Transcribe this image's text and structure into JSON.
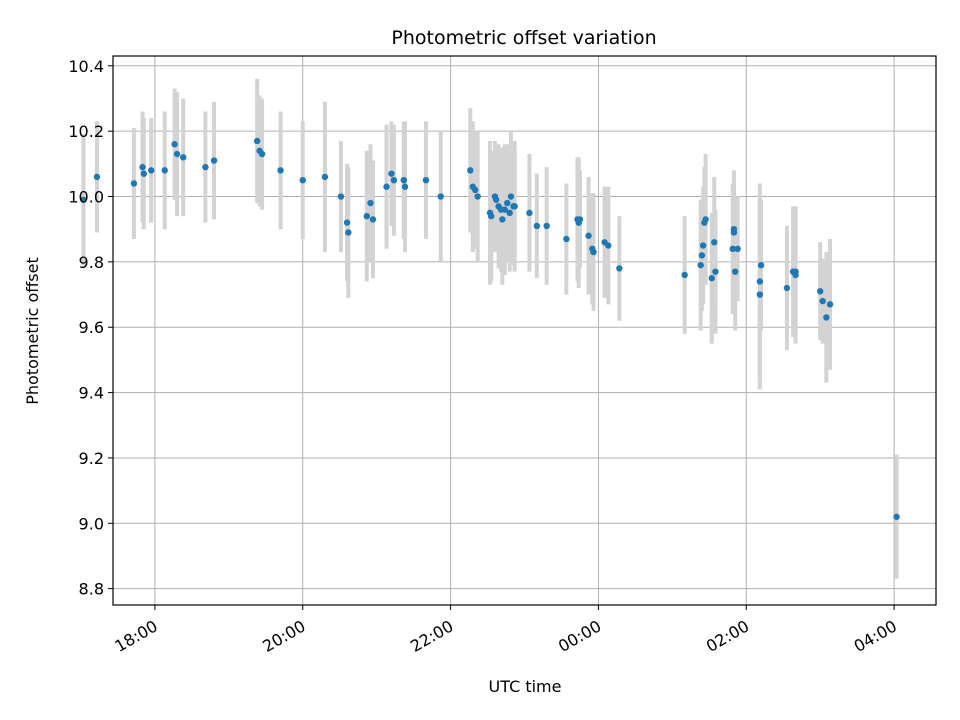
{
  "chart_data": {
    "type": "scatter",
    "title": "Photometric offset variation",
    "xlabel": "UTC time",
    "ylabel": "Photometric offset",
    "grid": true,
    "xlim": [
      "17:26",
      "04:34"
    ],
    "ylim": [
      8.75,
      10.43
    ],
    "xticks": [
      "18:00",
      "20:00",
      "22:00",
      "00:00",
      "02:00",
      "04:00"
    ],
    "yticks": [
      "8.8",
      "9.0",
      "9.2",
      "9.4",
      "9.6",
      "9.8",
      "10.0",
      "10.2",
      "10.4"
    ],
    "point_color": "#1f77b4",
    "errorbar_color": "#d3d3d3",
    "series": [
      {
        "x": [
          "17:02",
          "17:13",
          "17:43",
          "17:50",
          "17:51",
          "17:57",
          "18:08",
          "18:16",
          "18:18",
          "18:23",
          "18:41",
          "18:48",
          "19:23",
          "19:25",
          "19:27",
          "19:42",
          "20:00",
          "20:18",
          "20:31",
          "20:36",
          "20:37",
          "20:52",
          "20:55",
          "20:57",
          "21:08",
          "21:12",
          "21:14",
          "21:22",
          "21:23",
          "21:40",
          "21:52",
          "22:16",
          "22:18",
          "22:20",
          "22:22",
          "22:32",
          "22:33",
          "22:36",
          "22:37",
          "22:39",
          "22:41",
          "22:42",
          "22:44",
          "22:46",
          "22:48",
          "22:49",
          "22:51",
          "22:52",
          "23:04",
          "23:10",
          "23:18",
          "23:34",
          "23:43",
          "23:44",
          "23:45",
          "23:52",
          "23:55",
          "23:56",
          "24:05",
          "24:08",
          "24:17",
          "25:10",
          "25:23",
          "25:24",
          "25:25",
          "25:26",
          "25:27",
          "25:32",
          "25:34",
          "25:35",
          "25:49",
          "25:50",
          "25:50",
          "25:51",
          "25:53",
          "26:11",
          "26:11",
          "26:12",
          "26:33",
          "26:38",
          "26:40",
          "26:40",
          "27:00",
          "27:02",
          "27:05",
          "27:08",
          "28:02"
        ],
        "y": [
          9.99,
          10.06,
          10.04,
          10.09,
          10.07,
          10.08,
          10.08,
          10.16,
          10.13,
          10.12,
          10.09,
          10.11,
          10.17,
          10.14,
          10.13,
          10.08,
          10.05,
          10.06,
          10.0,
          9.92,
          9.89,
          9.94,
          9.98,
          9.93,
          10.03,
          10.07,
          10.05,
          10.05,
          10.03,
          10.05,
          10.0,
          10.08,
          10.03,
          10.02,
          10.0,
          9.95,
          9.94,
          10.0,
          9.99,
          9.97,
          9.96,
          9.93,
          9.96,
          9.98,
          9.95,
          10.0,
          9.97,
          9.97,
          9.95,
          9.91,
          9.91,
          9.87,
          9.93,
          9.92,
          9.93,
          9.88,
          9.84,
          9.83,
          9.86,
          9.85,
          9.78,
          9.76,
          9.79,
          9.82,
          9.85,
          9.92,
          9.93,
          9.75,
          9.86,
          9.77,
          9.84,
          9.9,
          9.89,
          9.77,
          9.84,
          9.74,
          9.7,
          9.79,
          9.72,
          9.77,
          9.77,
          9.76,
          9.71,
          9.68,
          9.63,
          9.67,
          9.02
        ],
        "err": [
          0.2,
          0.17,
          0.17,
          0.17,
          0.17,
          0.16,
          0.18,
          0.17,
          0.19,
          0.18,
          0.17,
          0.18,
          0.19,
          0.17,
          0.17,
          0.18,
          0.18,
          0.23,
          0.17,
          0.18,
          0.2,
          0.2,
          0.18,
          0.18,
          0.19,
          0.16,
          0.17,
          0.18,
          0.2,
          0.18,
          0.2,
          0.19,
          0.2,
          0.18,
          0.2,
          0.22,
          0.2,
          0.17,
          0.16,
          0.19,
          0.19,
          0.2,
          0.2,
          0.18,
          0.18,
          0.2,
          0.18,
          0.2,
          0.18,
          0.16,
          0.18,
          0.17,
          0.19,
          0.2,
          0.15,
          0.18,
          0.17,
          0.18,
          0.17,
          0.18,
          0.16,
          0.18,
          0.2,
          0.17,
          0.18,
          0.17,
          0.2,
          0.2,
          0.2,
          0.19,
          0.2,
          0.18,
          0.18,
          0.18,
          0.16,
          0.3,
          0.29,
          0.2,
          0.19,
          0.2,
          0.18,
          0.21,
          0.15,
          0.13,
          0.2,
          0.2,
          0.19
        ]
      }
    ]
  }
}
